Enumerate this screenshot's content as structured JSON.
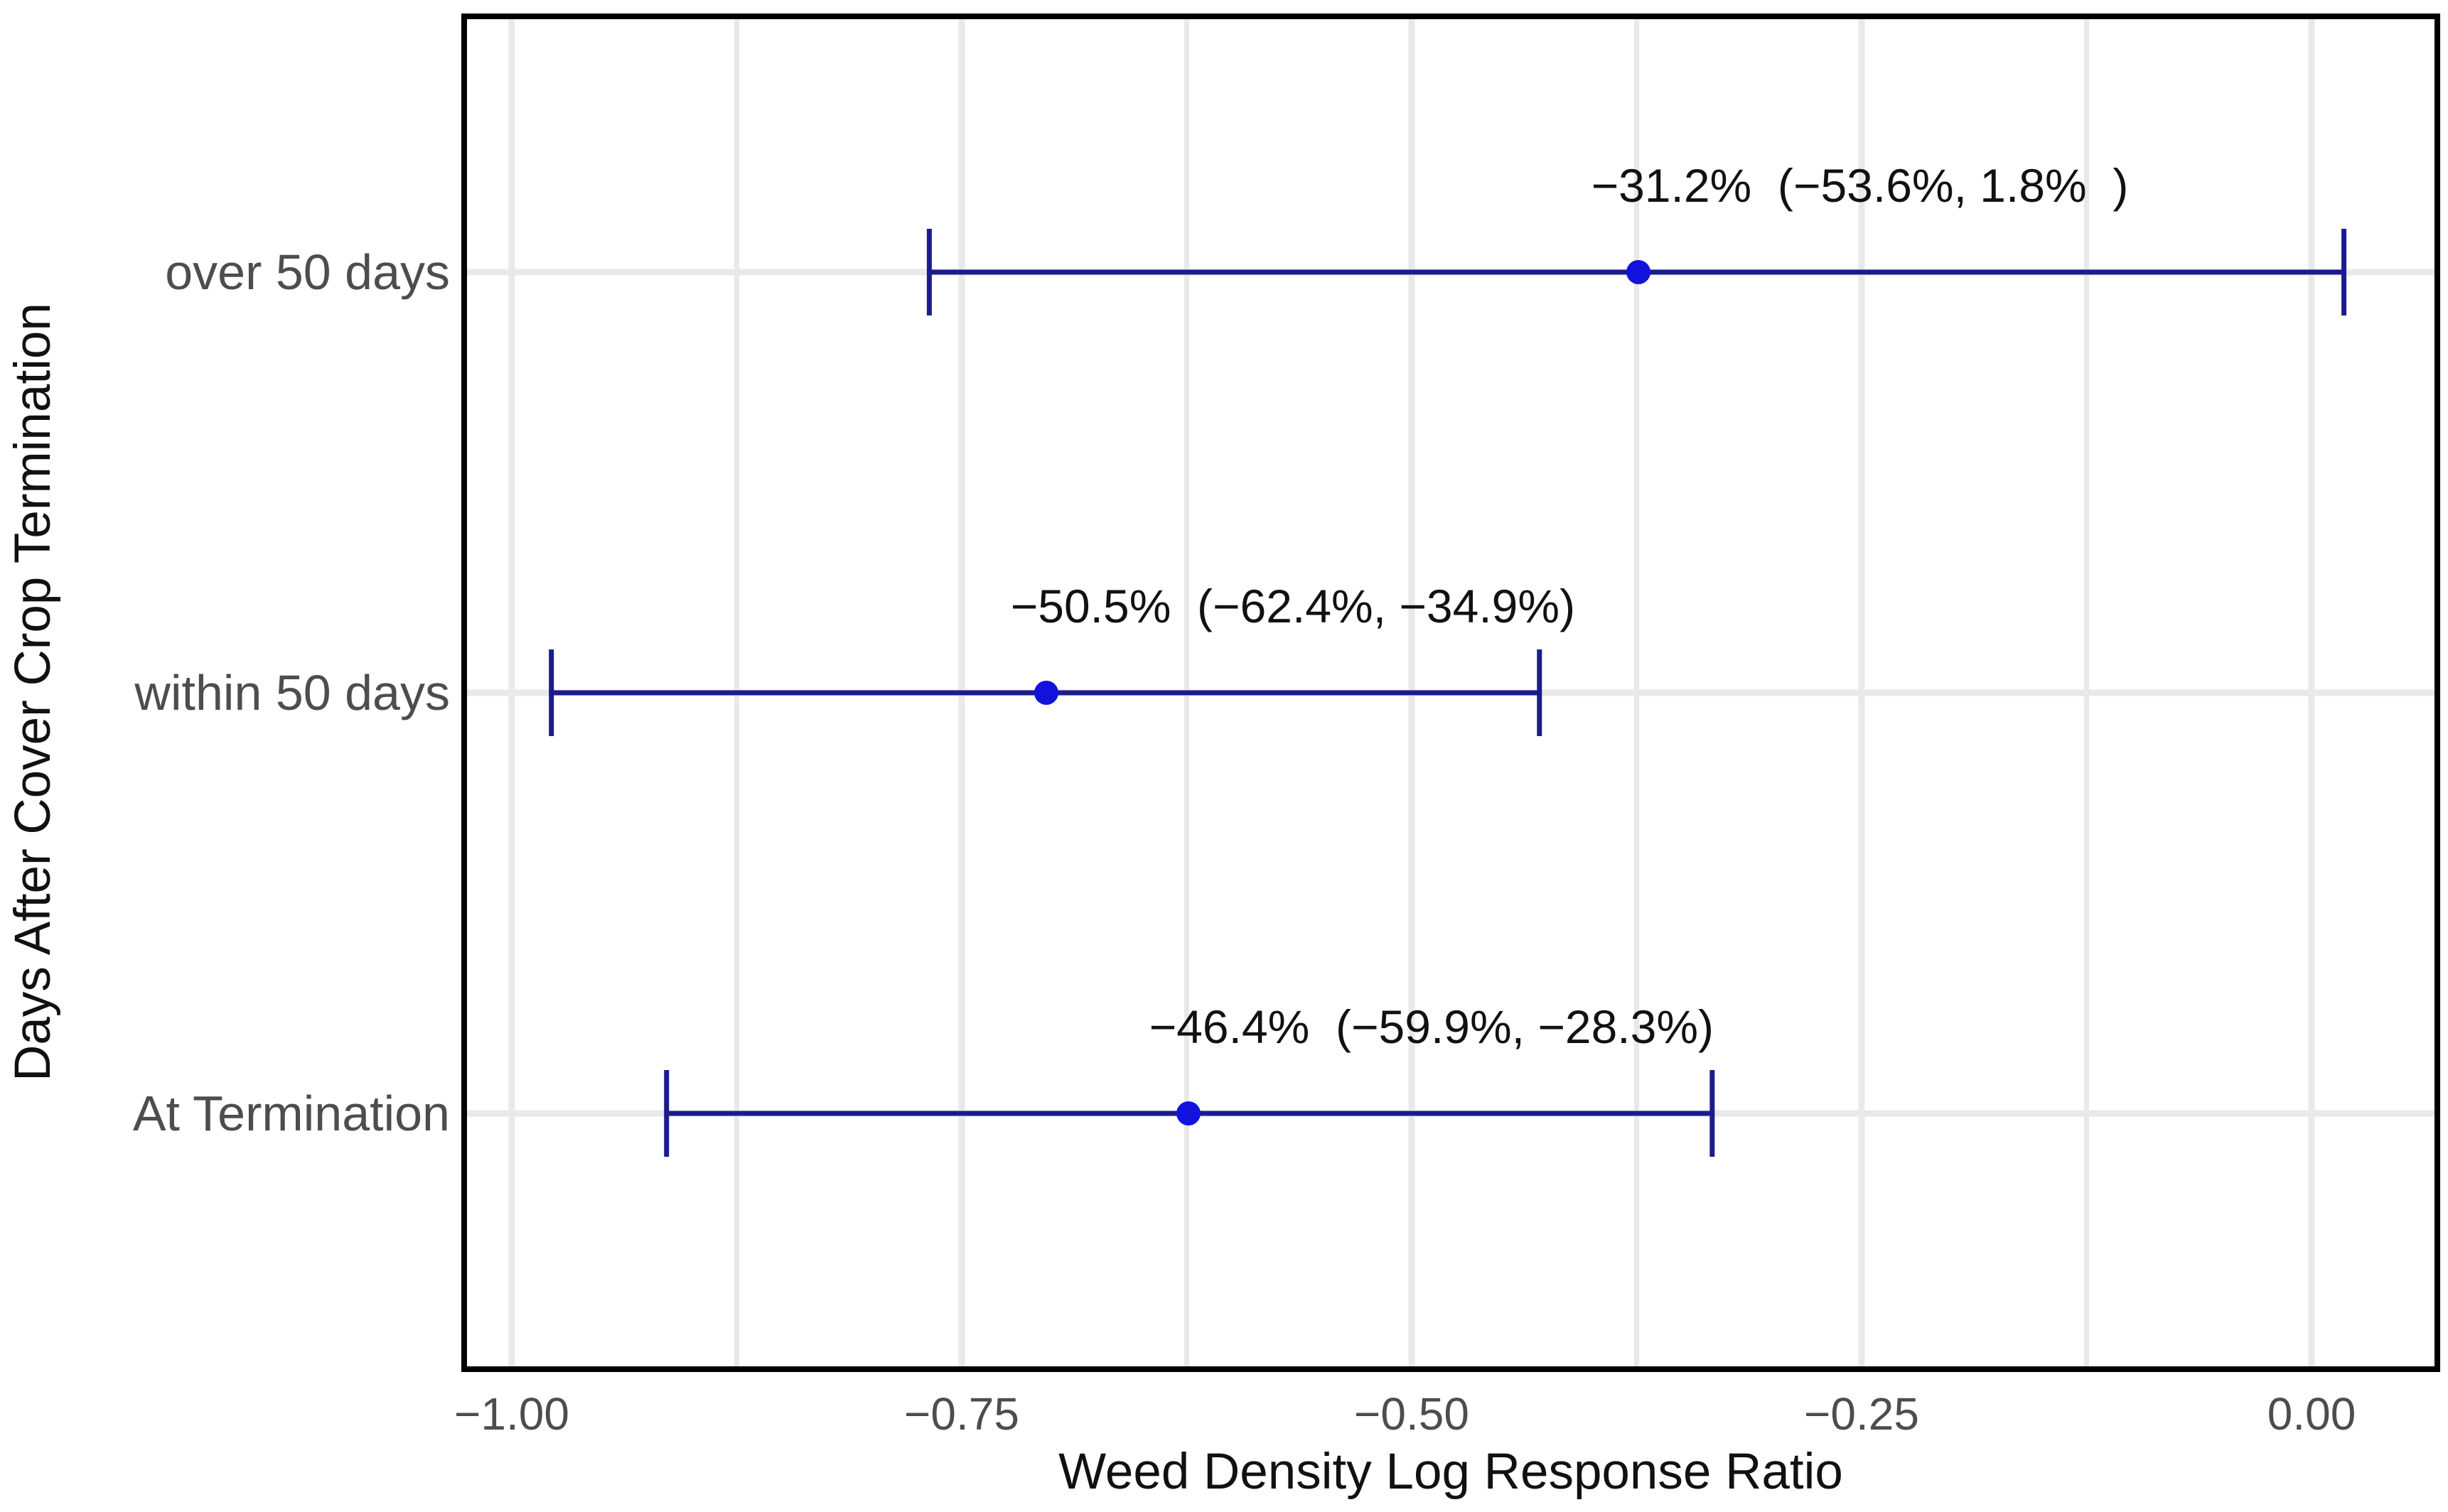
{
  "chart_data": {
    "type": "scatter",
    "subtype": "forest-plot-with-error-bars",
    "title": "",
    "xlabel": "Weed Density Log Response Ratio",
    "ylabel": "Days After Cover Crop Termination",
    "xlim": [
      -1.028,
      0.068
    ],
    "grid": {
      "vertical": "major and minor lines",
      "horizontal": "one line per category row",
      "color": "#e9e9e9"
    },
    "legend_position": "none",
    "x_major_ticks": [
      {
        "value": -1.0,
        "label": "−1.00"
      },
      {
        "value": -0.75,
        "label": "−0.75"
      },
      {
        "value": -0.5,
        "label": "−0.50"
      },
      {
        "value": -0.25,
        "label": "−0.25"
      },
      {
        "value": 0.0,
        "label": "0.00"
      }
    ],
    "x_minor_gridlines": [
      -0.875,
      -0.625,
      -0.375,
      -0.125
    ],
    "categories": [
      "over 50 days",
      "within 50 days",
      "At Termination"
    ],
    "rows": [
      {
        "category": "over 50 days",
        "estimate_log_rr": -0.374,
        "ci_low_log_rr": -0.768,
        "ci_high_log_rr": 0.018,
        "annotation": "−31.2%  (−53.6%, 1.8%  )",
        "annotation_center_x": -0.251
      },
      {
        "category": "within 50 days",
        "estimate_log_rr": -0.703,
        "ci_low_log_rr": -0.978,
        "ci_high_log_rr": -0.429,
        "annotation": "−50.5%  (−62.4%, −34.9%)",
        "annotation_center_x": -0.566
      },
      {
        "category": "At Termination",
        "estimate_log_rr": -0.624,
        "ci_low_log_rr": -0.914,
        "ci_high_log_rr": -0.333,
        "annotation": "−46.4%  (−59.9%, −28.3%)",
        "annotation_center_x": -0.489
      }
    ],
    "colors": {
      "point": "#1212dd",
      "errorbar": "#1b1b8f",
      "gridline": "#e9e9e9",
      "tick_text": "#4d4d4d",
      "title_text": "#111111",
      "annotation_text": "#111111",
      "panel_border": "#000000",
      "background": "#ffffff"
    }
  }
}
